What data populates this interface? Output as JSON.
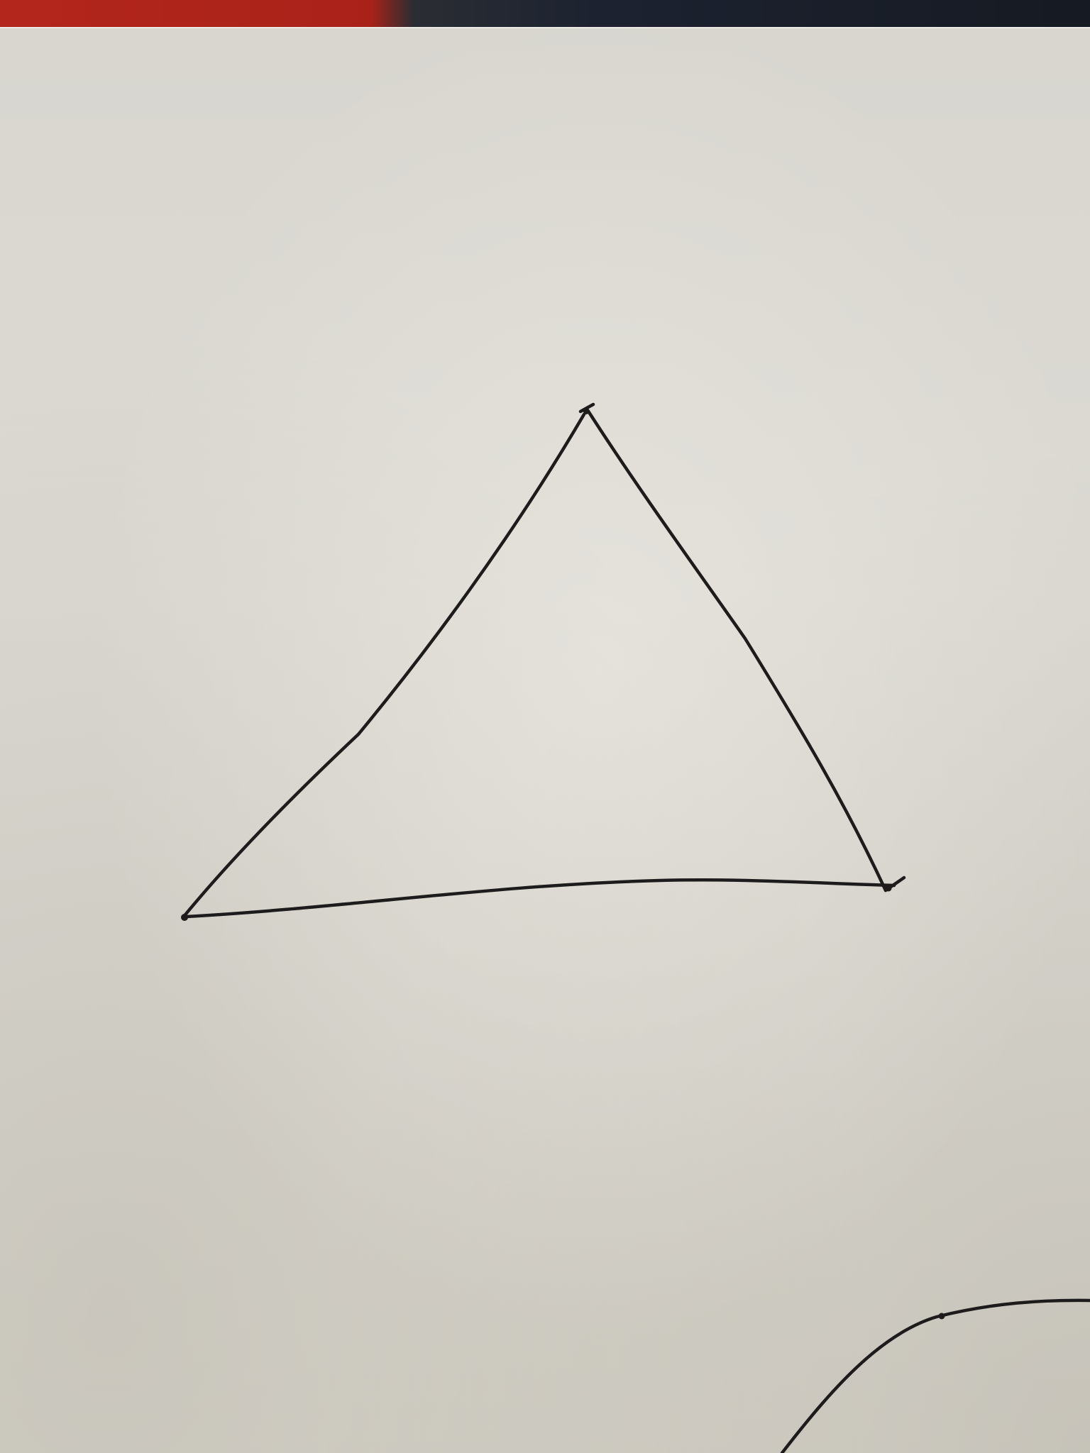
{
  "scene": {
    "subject": "hand-drawn-triangle-on-paper",
    "paper_color": "#d9d6cd",
    "ink_color": "#1e1b1c",
    "backdrop_colors": [
      "#b3261c",
      "#1c2230"
    ]
  }
}
